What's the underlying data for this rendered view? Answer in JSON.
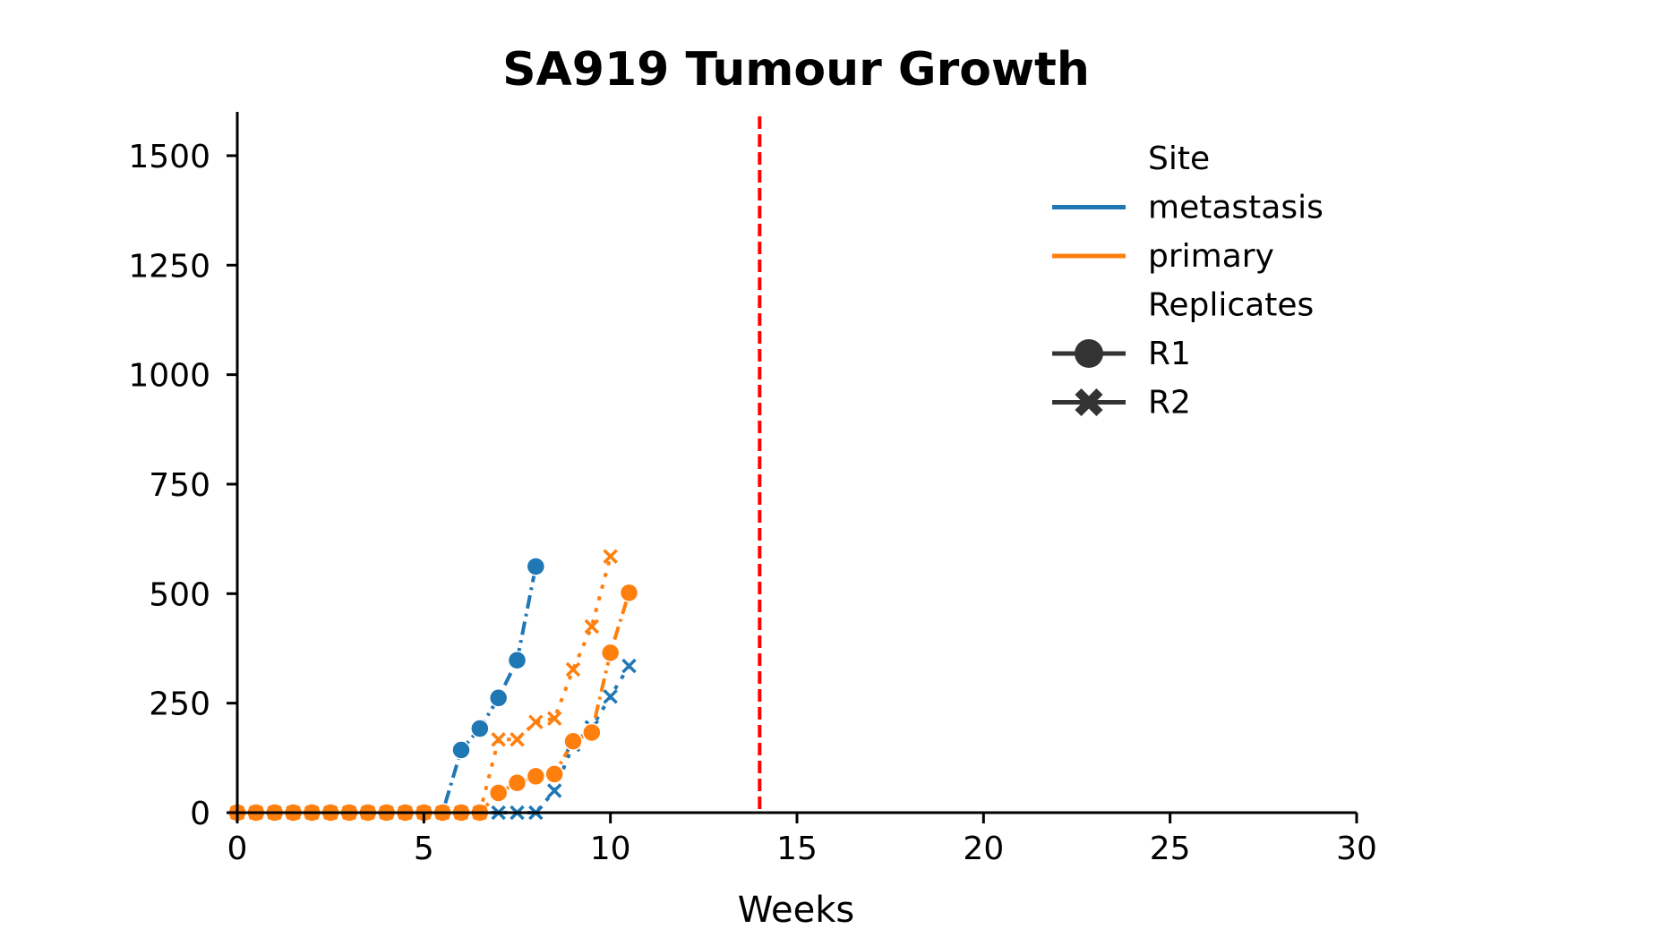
{
  "chart_data": {
    "type": "line",
    "title": "SA919 Tumour Growth",
    "xlabel": "Weeks",
    "ylabel": "",
    "xlim": [
      0,
      30
    ],
    "ylim": [
      0,
      1600
    ],
    "xticks": [
      0,
      5,
      10,
      15,
      20,
      25,
      30
    ],
    "yticks": [
      0,
      250,
      500,
      750,
      1000,
      1250,
      1500
    ],
    "grid": false,
    "vline": {
      "x": 14,
      "color": "#ff0000",
      "style": "dashed"
    },
    "legend": {
      "placement": "top-right",
      "hue_title": "Site",
      "style_title": "Replicates",
      "hue_entries": [
        {
          "label": "metastasis",
          "color": "#1f77b4"
        },
        {
          "label": "primary",
          "color": "#ff7f0e"
        }
      ],
      "style_entries": [
        {
          "label": "R1",
          "marker": "circle"
        },
        {
          "label": "R2",
          "marker": "x"
        }
      ]
    },
    "series": [
      {
        "site": "metastasis",
        "replicate": "R1",
        "color": "#1f77b4",
        "marker": "circle",
        "dash": "5 2 1 2",
        "x": [
          0,
          0.5,
          1,
          1.5,
          2,
          2.5,
          3,
          3.5,
          4,
          4.5,
          5,
          5.5,
          6,
          6.5,
          7,
          7.5,
          8
        ],
        "y": [
          0,
          0,
          0,
          0,
          0,
          0,
          0,
          0,
          0,
          0,
          0,
          0,
          143,
          192,
          262,
          348,
          562
        ]
      },
      {
        "site": "metastasis",
        "replicate": "R2",
        "color": "#1f77b4",
        "marker": "x",
        "dash": "1.5 3",
        "x": [
          0,
          0.5,
          1,
          1.5,
          2,
          2.5,
          3,
          3.5,
          4,
          4.5,
          5,
          5.5,
          6,
          6.5,
          7,
          7.5,
          8,
          8.5,
          9,
          9.5,
          10,
          10.5
        ],
        "y": [
          0,
          0,
          0,
          0,
          0,
          0,
          0,
          0,
          0,
          0,
          0,
          0,
          0,
          0,
          0,
          0,
          0,
          50,
          155,
          195,
          265,
          335
        ]
      },
      {
        "site": "primary",
        "replicate": "R1",
        "color": "#ff7f0e",
        "marker": "circle",
        "dash": "5 2 1 2",
        "x": [
          0,
          0.5,
          1,
          1.5,
          2,
          2.5,
          3,
          3.5,
          4,
          4.5,
          5,
          5.5,
          6,
          6.5,
          7,
          7.5,
          8,
          8.5,
          9,
          9.5,
          10,
          10.5
        ],
        "y": [
          0,
          0,
          0,
          0,
          0,
          0,
          0,
          0,
          0,
          0,
          0,
          0,
          0,
          0,
          45,
          68,
          83,
          88,
          163,
          183,
          365,
          502
        ]
      },
      {
        "site": "primary",
        "replicate": "R2",
        "color": "#ff7f0e",
        "marker": "x",
        "dash": "1.5 3",
        "x": [
          0,
          0.5,
          1,
          1.5,
          2,
          2.5,
          3,
          3.5,
          4,
          4.5,
          5,
          5.5,
          6,
          6.5,
          7,
          7.5,
          8,
          8.5,
          9,
          9.5,
          10
        ],
        "y": [
          0,
          0,
          0,
          0,
          0,
          0,
          0,
          0,
          0,
          0,
          0,
          0,
          0,
          0,
          167,
          167,
          207,
          215,
          327,
          425,
          585
        ]
      }
    ]
  }
}
